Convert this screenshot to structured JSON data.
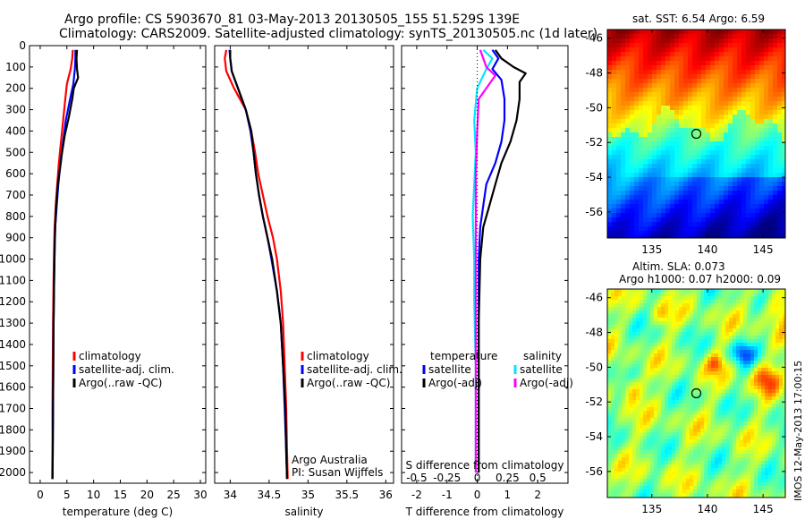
{
  "title_line1": "Argo profile: CS 5903670_81 03-May-2013 20130505_155 51.529S 139E",
  "title_line2": "Climatology: CARS2009. Satellite-adjusted climatology: synTS_20130505.nc (1d later)",
  "timestamp": "IMOS 12-May-2013 17:00:15",
  "colors": {
    "climatology": "#ff0000",
    "satellite": "#0000ff",
    "argo": "#000000",
    "sat_salinity": "#00e5ff",
    "argo_salinity": "#ff00ff"
  },
  "chart_data": [
    {
      "type": "line",
      "id": "temperature",
      "xlabel": "temperature (deg C)",
      "ylabel": "",
      "xlim": [
        -2,
        31
      ],
      "ylim": [
        2050,
        0
      ],
      "xticks": [
        0,
        5,
        10,
        15,
        20,
        25,
        30
      ],
      "yticks": [
        0,
        100,
        200,
        300,
        400,
        500,
        600,
        700,
        800,
        900,
        1000,
        1100,
        1200,
        1300,
        1400,
        1500,
        1600,
        1700,
        1800,
        1900,
        2000
      ],
      "legend": [
        "climatology",
        "satellite-adj. clim.",
        "Argo(..raw -QC)"
      ],
      "series": [
        {
          "name": "climatology",
          "color": "#ff0000",
          "points": [
            [
              6.1,
              20
            ],
            [
              6.0,
              60
            ],
            [
              5.7,
              110
            ],
            [
              5.0,
              180
            ],
            [
              4.7,
              250
            ],
            [
              4.3,
              350
            ],
            [
              3.9,
              450
            ],
            [
              3.5,
              550
            ],
            [
              3.2,
              650
            ],
            [
              2.9,
              750
            ],
            [
              2.7,
              850
            ],
            [
              2.6,
              950
            ],
            [
              2.5,
              1100
            ],
            [
              2.4,
              1300
            ],
            [
              2.35,
              1500
            ],
            [
              2.3,
              1700
            ],
            [
              2.3,
              1900
            ],
            [
              2.25,
              2030
            ]
          ]
        },
        {
          "name": "satellite-adj. clim.",
          "color": "#0000ff",
          "points": [
            [
              6.6,
              20
            ],
            [
              6.6,
              60
            ],
            [
              6.5,
              110
            ],
            [
              6.2,
              180
            ],
            [
              5.6,
              250
            ],
            [
              4.8,
              350
            ],
            [
              4.3,
              450
            ],
            [
              3.8,
              550
            ],
            [
              3.4,
              650
            ],
            [
              3.1,
              750
            ],
            [
              2.8,
              850
            ],
            [
              2.7,
              950
            ],
            [
              2.6,
              1100
            ],
            [
              2.5,
              1300
            ],
            [
              2.45,
              1500
            ],
            [
              2.4,
              1700
            ],
            [
              2.35,
              1900
            ],
            [
              2.3,
              2030
            ]
          ]
        },
        {
          "name": "Argo(..raw -QC)",
          "color": "#000000",
          "points": [
            [
              6.9,
              20
            ],
            [
              6.8,
              60
            ],
            [
              6.9,
              110
            ],
            [
              7.1,
              150
            ],
            [
              6.3,
              200
            ],
            [
              6.0,
              250
            ],
            [
              5.4,
              330
            ],
            [
              4.6,
              420
            ],
            [
              4.1,
              500
            ],
            [
              3.7,
              580
            ],
            [
              3.3,
              650
            ],
            [
              3.0,
              750
            ],
            [
              2.8,
              850
            ],
            [
              2.7,
              950
            ],
            [
              2.6,
              1100
            ],
            [
              2.5,
              1300
            ],
            [
              2.45,
              1500
            ],
            [
              2.4,
              1700
            ],
            [
              2.35,
              1900
            ],
            [
              2.3,
              2030
            ]
          ]
        }
      ]
    },
    {
      "type": "line",
      "id": "salinity",
      "xlabel": "salinity",
      "ylabel": "",
      "xlim": [
        33.8,
        36.1
      ],
      "ylim": [
        2050,
        0
      ],
      "xticks": [
        34,
        34.5,
        35,
        35.5,
        36
      ],
      "legend": [
        "climatology",
        "satellite-adj. clim.",
        "Argo(..raw -QC)"
      ],
      "series": [
        {
          "name": "climatology",
          "color": "#ff0000",
          "points": [
            [
              33.95,
              20
            ],
            [
              33.93,
              60
            ],
            [
              33.95,
              120
            ],
            [
              34.05,
              200
            ],
            [
              34.2,
              300
            ],
            [
              34.27,
              400
            ],
            [
              34.32,
              500
            ],
            [
              34.36,
              600
            ],
            [
              34.42,
              700
            ],
            [
              34.48,
              800
            ],
            [
              34.55,
              900
            ],
            [
              34.6,
              1000
            ],
            [
              34.65,
              1150
            ],
            [
              34.68,
              1300
            ],
            [
              34.7,
              1500
            ],
            [
              34.72,
              1700
            ],
            [
              34.73,
              1900
            ],
            [
              34.74,
              2030
            ]
          ]
        },
        {
          "name": "satellite-adj. clim.",
          "color": "#0000ff",
          "points": [
            [
              33.99,
              20
            ],
            [
              34.0,
              60
            ],
            [
              34.02,
              120
            ],
            [
              34.1,
              200
            ],
            [
              34.2,
              300
            ],
            [
              34.26,
              400
            ],
            [
              34.3,
              500
            ],
            [
              34.33,
              600
            ],
            [
              34.37,
              700
            ],
            [
              34.42,
              800
            ],
            [
              34.48,
              900
            ],
            [
              34.53,
              1000
            ],
            [
              34.6,
              1150
            ],
            [
              34.65,
              1300
            ],
            [
              34.68,
              1500
            ],
            [
              34.7,
              1700
            ],
            [
              34.72,
              1900
            ],
            [
              34.73,
              2030
            ]
          ]
        },
        {
          "name": "Argo(..raw -QC)",
          "color": "#000000",
          "points": [
            [
              34.0,
              20
            ],
            [
              34.0,
              60
            ],
            [
              34.02,
              120
            ],
            [
              34.1,
              200
            ],
            [
              34.2,
              300
            ],
            [
              34.27,
              400
            ],
            [
              34.3,
              500
            ],
            [
              34.33,
              600
            ],
            [
              34.37,
              700
            ],
            [
              34.42,
              800
            ],
            [
              34.48,
              900
            ],
            [
              34.54,
              1000
            ],
            [
              34.6,
              1150
            ],
            [
              34.65,
              1300
            ],
            [
              34.68,
              1500
            ],
            [
              34.71,
              1700
            ],
            [
              34.72,
              1900
            ],
            [
              34.73,
              2030
            ]
          ]
        }
      ],
      "annotation": [
        "Argo Australia",
        "PI: Susan Wijffels"
      ]
    },
    {
      "type": "line",
      "id": "difference",
      "xlabel": "T difference from climatology",
      "xlabel_top": "S difference from climatology",
      "xlim": [
        -2.5,
        3.0
      ],
      "ylim": [
        2050,
        0
      ],
      "xticks": [
        -2,
        -1,
        0,
        1,
        2
      ],
      "xticks_top": [
        -0.5,
        -0.25,
        0,
        0.25,
        0.5
      ],
      "legend_left": {
        "title": "temperature",
        "items": [
          "satellite",
          "Argo(-adj)"
        ]
      },
      "legend_right": {
        "title": "salinity",
        "items": [
          "satellite",
          "Argo(-adj)"
        ]
      },
      "series": [
        {
          "name": "temperature satellite",
          "color": "#0000ff",
          "points": [
            [
              0.5,
              20
            ],
            [
              0.7,
              60
            ],
            [
              0.5,
              110
            ],
            [
              0.8,
              160
            ],
            [
              0.9,
              250
            ],
            [
              0.9,
              350
            ],
            [
              0.8,
              450
            ],
            [
              0.6,
              550
            ],
            [
              0.3,
              650
            ],
            [
              0.2,
              750
            ],
            [
              0.1,
              850
            ],
            [
              0.05,
              1000
            ],
            [
              0.05,
              1300
            ],
            [
              0.05,
              1600
            ],
            [
              0.05,
              1900
            ],
            [
              0.05,
              2000
            ]
          ]
        },
        {
          "name": "temperature Argo(-adj)",
          "color": "#000000",
          "points": [
            [
              0.6,
              20
            ],
            [
              0.8,
              60
            ],
            [
              1.2,
              100
            ],
            [
              1.6,
              130
            ],
            [
              1.4,
              170
            ],
            [
              1.4,
              250
            ],
            [
              1.3,
              350
            ],
            [
              1.1,
              450
            ],
            [
              0.8,
              550
            ],
            [
              0.6,
              650
            ],
            [
              0.4,
              750
            ],
            [
              0.2,
              850
            ],
            [
              0.1,
              1000
            ],
            [
              0.05,
              1300
            ],
            [
              0.05,
              1600
            ],
            [
              0.05,
              1900
            ],
            [
              0.05,
              2000
            ]
          ]
        },
        {
          "name": "salinity satellite",
          "color": "#00e5ff",
          "points": [
            [
              0.2,
              20
            ],
            [
              0.5,
              60
            ],
            [
              0.3,
              110
            ],
            [
              0.0,
              200
            ],
            [
              -0.1,
              350
            ],
            [
              -0.05,
              500
            ],
            [
              -0.1,
              650
            ],
            [
              -0.15,
              800
            ],
            [
              -0.1,
              1000
            ],
            [
              -0.1,
              1200
            ],
            [
              -0.05,
              1500
            ],
            [
              -0.05,
              1800
            ],
            [
              -0.05,
              2000
            ]
          ]
        },
        {
          "name": "salinity Argo(-adj)",
          "color": "#ff00ff",
          "points": [
            [
              0.1,
              20
            ],
            [
              0.2,
              60
            ],
            [
              0.3,
              100
            ],
            [
              0.6,
              140
            ],
            [
              0.4,
              180
            ],
            [
              0.05,
              250
            ],
            [
              0.0,
              400
            ],
            [
              -0.05,
              600
            ],
            [
              -0.05,
              800
            ],
            [
              -0.05,
              1000
            ],
            [
              -0.05,
              1300
            ],
            [
              -0.05,
              1600
            ],
            [
              -0.05,
              2000
            ]
          ]
        }
      ]
    },
    {
      "type": "heatmap",
      "id": "sst_map",
      "title": "sat. SST: 6.54 Argo: 6.59",
      "xticks": [
        135,
        140,
        145
      ],
      "yticks": [
        -46,
        -48,
        -50,
        -52,
        -54,
        -56
      ],
      "xlim": [
        131,
        147
      ],
      "ylim": [
        -57.5,
        -45.5
      ],
      "marker": [
        139,
        -51.5
      ]
    },
    {
      "type": "heatmap",
      "id": "sla_map",
      "title_lines": [
        "Altim. SLA: 0.073",
        "Argo h1000: 0.07 h2000: 0.09"
      ],
      "xticks": [
        135,
        140,
        145
      ],
      "yticks": [
        -46,
        -48,
        -50,
        -52,
        -54,
        -56
      ],
      "xlim": [
        131,
        147
      ],
      "ylim": [
        -57.5,
        -45.5
      ],
      "marker": [
        139,
        -51.5
      ]
    }
  ]
}
